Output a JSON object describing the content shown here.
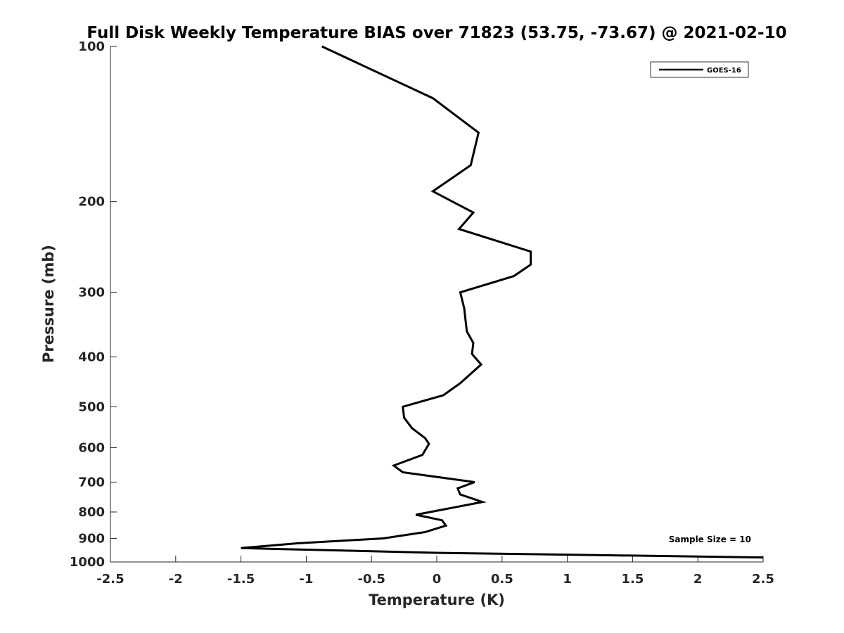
{
  "chart_data": {
    "type": "line",
    "title": "Full Disk Weekly Temperature BIAS over 71823 (53.75, -73.67) @ 2021-02-10",
    "xlabel": "Temperature (K)",
    "ylabel": "Pressure (mb)",
    "xlim": [
      -2.5,
      2.5
    ],
    "ylim": [
      100,
      1000
    ],
    "y_scale": "log",
    "y_reversed": true,
    "grid": false,
    "legend_position": "top-right",
    "x_ticks": [
      "-2.5",
      "-2",
      "-1.5",
      "-1",
      "-0.5",
      "0",
      "0.5",
      "1",
      "1.5",
      "2",
      "2.5"
    ],
    "x_tick_values": [
      -2.5,
      -2,
      -1.5,
      -1,
      -0.5,
      0,
      0.5,
      1,
      1.5,
      2,
      2.5
    ],
    "y_ticks": [
      "100",
      "200",
      "300",
      "400",
      "500",
      "600",
      "700",
      "800",
      "900",
      "1000"
    ],
    "y_tick_values": [
      100,
      200,
      300,
      400,
      500,
      600,
      700,
      800,
      900,
      1000
    ],
    "annotation": "Sample Size = 10",
    "series": [
      {
        "name": "GOES-16",
        "color": "#000000",
        "points": [
          {
            "x": -0.88,
            "p": 100
          },
          {
            "x": -0.03,
            "p": 126
          },
          {
            "x": 0.32,
            "p": 147
          },
          {
            "x": 0.26,
            "p": 170
          },
          {
            "x": -0.03,
            "p": 191
          },
          {
            "x": 0.28,
            "p": 210
          },
          {
            "x": 0.17,
            "p": 226
          },
          {
            "x": 0.72,
            "p": 250
          },
          {
            "x": 0.72,
            "p": 265
          },
          {
            "x": 0.59,
            "p": 279
          },
          {
            "x": 0.18,
            "p": 300
          },
          {
            "x": 0.21,
            "p": 322
          },
          {
            "x": 0.23,
            "p": 357
          },
          {
            "x": 0.28,
            "p": 376
          },
          {
            "x": 0.27,
            "p": 395
          },
          {
            "x": 0.34,
            "p": 414
          },
          {
            "x": 0.18,
            "p": 450
          },
          {
            "x": 0.05,
            "p": 475
          },
          {
            "x": -0.26,
            "p": 500
          },
          {
            "x": -0.25,
            "p": 525
          },
          {
            "x": -0.19,
            "p": 550
          },
          {
            "x": -0.09,
            "p": 575
          },
          {
            "x": -0.06,
            "p": 590
          },
          {
            "x": -0.11,
            "p": 620
          },
          {
            "x": -0.33,
            "p": 650
          },
          {
            "x": -0.26,
            "p": 670
          },
          {
            "x": 0.29,
            "p": 700
          },
          {
            "x": 0.16,
            "p": 720
          },
          {
            "x": 0.18,
            "p": 740
          },
          {
            "x": 0.35,
            "p": 765
          },
          {
            "x": -0.16,
            "p": 810
          },
          {
            "x": 0.04,
            "p": 830
          },
          {
            "x": 0.07,
            "p": 850
          },
          {
            "x": -0.09,
            "p": 875
          },
          {
            "x": -0.41,
            "p": 900
          },
          {
            "x": -1.07,
            "p": 920
          },
          {
            "x": -1.5,
            "p": 940
          },
          {
            "x": 0.0,
            "p": 960
          },
          {
            "x": 2.5,
            "p": 980
          }
        ]
      }
    ]
  }
}
